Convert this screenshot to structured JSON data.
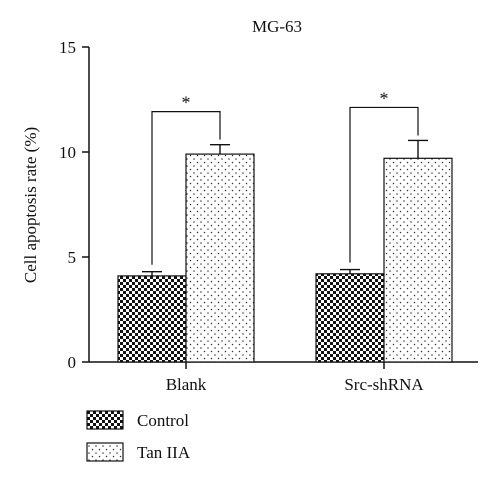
{
  "chart_data": {
    "type": "bar",
    "title": "MG-63",
    "xlabel": "",
    "ylabel": "Cell apoptosis rate (%)",
    "ylim": [
      0,
      15
    ],
    "yticks": [
      "0",
      "5",
      "10",
      "15"
    ],
    "categories": [
      "Blank",
      "Src-shRNA"
    ],
    "series": [
      {
        "name": "Control",
        "values": [
          4.1,
          4.2
        ],
        "errors": [
          0.2,
          0.2
        ],
        "pattern": "checker"
      },
      {
        "name": "Tan IIA",
        "values": [
          9.9,
          9.7
        ],
        "errors": [
          0.45,
          0.85
        ],
        "pattern": "dots"
      }
    ],
    "annotations": [
      {
        "category": "Blank",
        "label": "*"
      },
      {
        "category": "Src-shRNA",
        "label": "*"
      }
    ],
    "legend_position": "bottom-left",
    "grid": false
  }
}
